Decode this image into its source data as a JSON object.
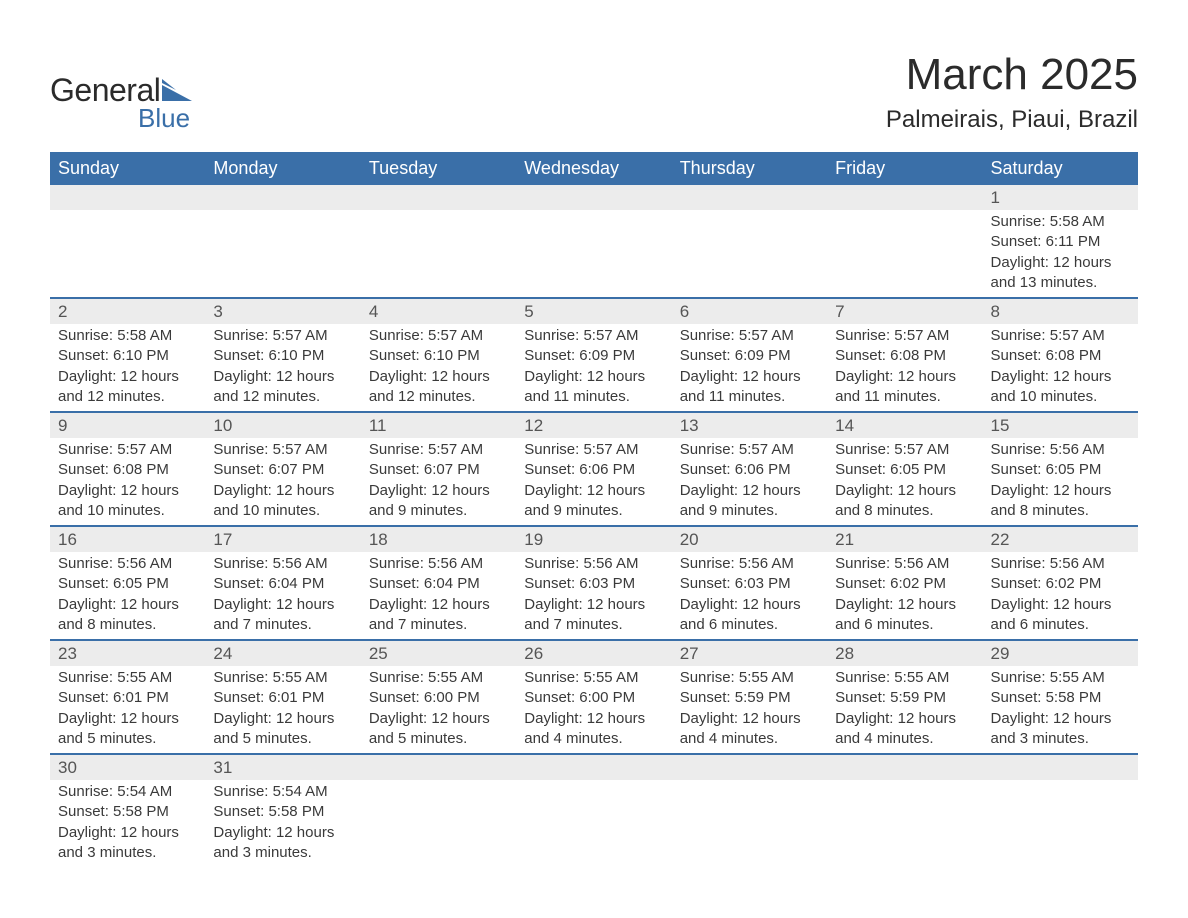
{
  "logo": {
    "top": "General",
    "bottom": "Blue",
    "icon_color": "#3a6fa8"
  },
  "title": "March 2025",
  "location": "Palmeirais, Piaui, Brazil",
  "colors": {
    "header_bg": "#3a6fa8",
    "header_text": "#ffffff",
    "daynum_bg": "#ececec",
    "week_border": "#3a6fa8",
    "body_text": "#3a3a3a"
  },
  "day_headers": [
    "Sunday",
    "Monday",
    "Tuesday",
    "Wednesday",
    "Thursday",
    "Friday",
    "Saturday"
  ],
  "weeks": [
    [
      null,
      null,
      null,
      null,
      null,
      null,
      {
        "n": "1",
        "sunrise": "5:58 AM",
        "sunset": "6:11 PM",
        "daylight": "12 hours and 13 minutes."
      }
    ],
    [
      {
        "n": "2",
        "sunrise": "5:58 AM",
        "sunset": "6:10 PM",
        "daylight": "12 hours and 12 minutes."
      },
      {
        "n": "3",
        "sunrise": "5:57 AM",
        "sunset": "6:10 PM",
        "daylight": "12 hours and 12 minutes."
      },
      {
        "n": "4",
        "sunrise": "5:57 AM",
        "sunset": "6:10 PM",
        "daylight": "12 hours and 12 minutes."
      },
      {
        "n": "5",
        "sunrise": "5:57 AM",
        "sunset": "6:09 PM",
        "daylight": "12 hours and 11 minutes."
      },
      {
        "n": "6",
        "sunrise": "5:57 AM",
        "sunset": "6:09 PM",
        "daylight": "12 hours and 11 minutes."
      },
      {
        "n": "7",
        "sunrise": "5:57 AM",
        "sunset": "6:08 PM",
        "daylight": "12 hours and 11 minutes."
      },
      {
        "n": "8",
        "sunrise": "5:57 AM",
        "sunset": "6:08 PM",
        "daylight": "12 hours and 10 minutes."
      }
    ],
    [
      {
        "n": "9",
        "sunrise": "5:57 AM",
        "sunset": "6:08 PM",
        "daylight": "12 hours and 10 minutes."
      },
      {
        "n": "10",
        "sunrise": "5:57 AM",
        "sunset": "6:07 PM",
        "daylight": "12 hours and 10 minutes."
      },
      {
        "n": "11",
        "sunrise": "5:57 AM",
        "sunset": "6:07 PM",
        "daylight": "12 hours and 9 minutes."
      },
      {
        "n": "12",
        "sunrise": "5:57 AM",
        "sunset": "6:06 PM",
        "daylight": "12 hours and 9 minutes."
      },
      {
        "n": "13",
        "sunrise": "5:57 AM",
        "sunset": "6:06 PM",
        "daylight": "12 hours and 9 minutes."
      },
      {
        "n": "14",
        "sunrise": "5:57 AM",
        "sunset": "6:05 PM",
        "daylight": "12 hours and 8 minutes."
      },
      {
        "n": "15",
        "sunrise": "5:56 AM",
        "sunset": "6:05 PM",
        "daylight": "12 hours and 8 minutes."
      }
    ],
    [
      {
        "n": "16",
        "sunrise": "5:56 AM",
        "sunset": "6:05 PM",
        "daylight": "12 hours and 8 minutes."
      },
      {
        "n": "17",
        "sunrise": "5:56 AM",
        "sunset": "6:04 PM",
        "daylight": "12 hours and 7 minutes."
      },
      {
        "n": "18",
        "sunrise": "5:56 AM",
        "sunset": "6:04 PM",
        "daylight": "12 hours and 7 minutes."
      },
      {
        "n": "19",
        "sunrise": "5:56 AM",
        "sunset": "6:03 PM",
        "daylight": "12 hours and 7 minutes."
      },
      {
        "n": "20",
        "sunrise": "5:56 AM",
        "sunset": "6:03 PM",
        "daylight": "12 hours and 6 minutes."
      },
      {
        "n": "21",
        "sunrise": "5:56 AM",
        "sunset": "6:02 PM",
        "daylight": "12 hours and 6 minutes."
      },
      {
        "n": "22",
        "sunrise": "5:56 AM",
        "sunset": "6:02 PM",
        "daylight": "12 hours and 6 minutes."
      }
    ],
    [
      {
        "n": "23",
        "sunrise": "5:55 AM",
        "sunset": "6:01 PM",
        "daylight": "12 hours and 5 minutes."
      },
      {
        "n": "24",
        "sunrise": "5:55 AM",
        "sunset": "6:01 PM",
        "daylight": "12 hours and 5 minutes."
      },
      {
        "n": "25",
        "sunrise": "5:55 AM",
        "sunset": "6:00 PM",
        "daylight": "12 hours and 5 minutes."
      },
      {
        "n": "26",
        "sunrise": "5:55 AM",
        "sunset": "6:00 PM",
        "daylight": "12 hours and 4 minutes."
      },
      {
        "n": "27",
        "sunrise": "5:55 AM",
        "sunset": "5:59 PM",
        "daylight": "12 hours and 4 minutes."
      },
      {
        "n": "28",
        "sunrise": "5:55 AM",
        "sunset": "5:59 PM",
        "daylight": "12 hours and 4 minutes."
      },
      {
        "n": "29",
        "sunrise": "5:55 AM",
        "sunset": "5:58 PM",
        "daylight": "12 hours and 3 minutes."
      }
    ],
    [
      {
        "n": "30",
        "sunrise": "5:54 AM",
        "sunset": "5:58 PM",
        "daylight": "12 hours and 3 minutes."
      },
      {
        "n": "31",
        "sunrise": "5:54 AM",
        "sunset": "5:58 PM",
        "daylight": "12 hours and 3 minutes."
      },
      null,
      null,
      null,
      null,
      null
    ]
  ],
  "labels": {
    "sunrise_prefix": "Sunrise: ",
    "sunset_prefix": "Sunset: ",
    "daylight_prefix": "Daylight: "
  }
}
